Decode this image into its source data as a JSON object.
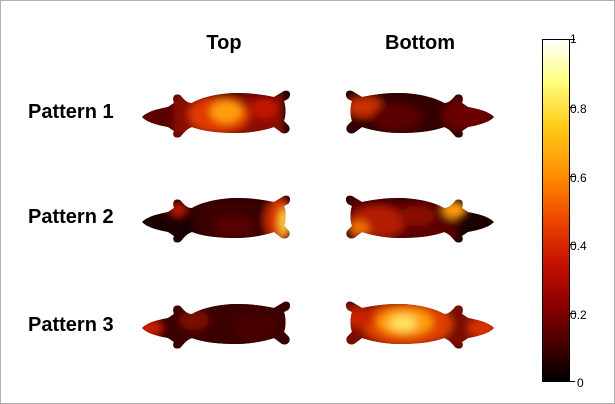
{
  "column_labels": [
    "Top",
    "Bottom"
  ],
  "row_labels": [
    "Pattern 1",
    "Pattern 2",
    "Pattern 3"
  ],
  "colorbar": {
    "ticks": [
      "1",
      "0.8",
      "0.6",
      "0.4",
      "0.2",
      "0"
    ],
    "colormap": [
      "#000000",
      "#400000",
      "#8a0000",
      "#c81200",
      "#ee4a00",
      "#ff8c00",
      "#ffcd1a",
      "#ffff80",
      "#ffffff"
    ]
  }
}
